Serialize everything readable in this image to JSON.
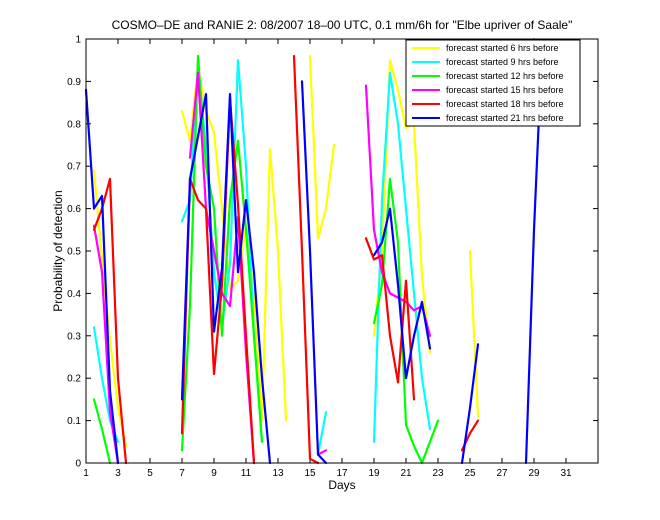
{
  "chart_data": {
    "type": "line",
    "title": "COSMO–DE and RANIE 2: 08/2007 18–00 UTC, 0.1 mm/6h for \"Elbe upriver of Saale\"",
    "xlabel": "Days",
    "ylabel": "Probability of detection",
    "xlim": [
      1,
      33
    ],
    "ylim": [
      0,
      1
    ],
    "xticks": [
      1,
      3,
      5,
      7,
      9,
      11,
      13,
      15,
      17,
      19,
      21,
      23,
      25,
      27,
      29,
      31
    ],
    "yticks": [
      0,
      0.1,
      0.2,
      0.3,
      0.4,
      0.5,
      0.6,
      0.7,
      0.8,
      0.9,
      1
    ],
    "legend_position": "top-right",
    "series": [
      {
        "name": "forecast started 6 hrs before",
        "color": "#ffff00",
        "segments": [
          [
            [
              1.5,
              0.69
            ],
            [
              2.0,
              0.48
            ],
            [
              2.5,
              0.29
            ],
            [
              3.0,
              0.13
            ],
            [
              3.5,
              0.04
            ]
          ],
          [
            [
              7.0,
              0.83
            ],
            [
              7.5,
              0.76
            ],
            [
              8.0,
              0.93
            ],
            [
              8.5,
              0.83
            ],
            [
              9.0,
              0.78
            ],
            [
              9.5,
              0.6
            ],
            [
              10.0,
              0.41
            ],
            [
              10.5,
              0.43
            ],
            [
              11.0,
              0.56
            ],
            [
              11.5,
              0.39
            ],
            [
              12.0,
              0.1
            ],
            [
              12.5,
              0.74
            ],
            [
              13.0,
              0.5
            ],
            [
              13.5,
              0.1
            ]
          ],
          [
            [
              15.0,
              0.96
            ],
            [
              15.5,
              0.53
            ],
            [
              16.0,
              0.6
            ],
            [
              16.5,
              0.75
            ]
          ],
          [
            [
              19.0,
              0.3
            ],
            [
              19.5,
              0.5
            ],
            [
              20.0,
              0.95
            ],
            [
              20.5,
              0.88
            ],
            [
              21.0,
              0.79
            ],
            [
              21.5,
              0.8
            ],
            [
              22.0,
              0.44
            ],
            [
              22.5,
              0.26
            ]
          ],
          [
            [
              25.0,
              0.5
            ],
            [
              25.5,
              0.11
            ]
          ],
          [
            [
              29.0,
              0.93
            ],
            [
              29.5,
              0.99
            ],
            [
              30.0,
              0.98
            ]
          ]
        ]
      },
      {
        "name": "forecast started 9 hrs before",
        "color": "#00ffff",
        "segments": [
          [
            [
              1.5,
              0.32
            ],
            [
              2.0,
              0.2
            ],
            [
              2.5,
              0.1
            ],
            [
              3.0,
              0.05
            ]
          ],
          [
            [
              7.0,
              0.57
            ],
            [
              7.5,
              0.62
            ],
            [
              8.0,
              0.94
            ],
            [
              8.5,
              0.74
            ],
            [
              9.0,
              0.45
            ],
            [
              9.5,
              0.32
            ],
            [
              10.0,
              0.47
            ],
            [
              10.5,
              0.95
            ],
            [
              11.0,
              0.7
            ],
            [
              11.5,
              0.3
            ],
            [
              12.0,
              0.05
            ]
          ],
          [
            [
              15.5,
              0.02
            ],
            [
              16.0,
              0.12
            ]
          ],
          [
            [
              19.0,
              0.05
            ],
            [
              19.5,
              0.62
            ],
            [
              20.0,
              0.92
            ],
            [
              20.5,
              0.8
            ],
            [
              21.0,
              0.6
            ],
            [
              21.5,
              0.4
            ],
            [
              22.0,
              0.2
            ],
            [
              22.5,
              0.08
            ]
          ],
          [
            [
              29.0,
              0.99
            ],
            [
              29.5,
              0.98
            ],
            [
              30.0,
              0.96
            ]
          ]
        ]
      },
      {
        "name": "forecast started 12 hrs before",
        "color": "#00ff00",
        "segments": [
          [
            [
              1.5,
              0.15
            ],
            [
              2.0,
              0.08
            ],
            [
              2.5,
              0.0
            ]
          ],
          [
            [
              7.0,
              0.03
            ],
            [
              7.5,
              0.37
            ],
            [
              8.0,
              0.96
            ],
            [
              8.5,
              0.7
            ],
            [
              9.0,
              0.6
            ],
            [
              9.5,
              0.3
            ],
            [
              10.0,
              0.62
            ],
            [
              10.5,
              0.76
            ],
            [
              11.0,
              0.55
            ],
            [
              11.5,
              0.3
            ],
            [
              12.0,
              0.05
            ]
          ],
          [
            [
              19.0,
              0.33
            ],
            [
              19.5,
              0.42
            ],
            [
              20.0,
              0.67
            ],
            [
              20.5,
              0.52
            ],
            [
              21.0,
              0.09
            ],
            [
              21.5,
              0.04
            ],
            [
              22.0,
              0.0
            ],
            [
              22.5,
              0.05
            ],
            [
              23.0,
              0.1
            ]
          ],
          [
            [
              29.0,
              1.0
            ],
            [
              29.5,
              0.98
            ],
            [
              30.0,
              0.97
            ]
          ]
        ]
      },
      {
        "name": "forecast started 15 hrs before",
        "color": "#ff00ff",
        "segments": [
          [
            [
              1.5,
              0.56
            ],
            [
              2.0,
              0.45
            ],
            [
              2.5,
              0.12
            ],
            [
              3.0,
              0.0
            ]
          ],
          [
            [
              7.5,
              0.72
            ],
            [
              8.0,
              0.92
            ],
            [
              8.5,
              0.6
            ],
            [
              9.0,
              0.5
            ],
            [
              9.5,
              0.4
            ],
            [
              10.0,
              0.37
            ],
            [
              10.5,
              0.58
            ],
            [
              11.0,
              0.26
            ],
            [
              11.5,
              0.0
            ]
          ],
          [
            [
              15.5,
              0.02
            ],
            [
              16.0,
              0.03
            ]
          ],
          [
            [
              18.5,
              0.89
            ],
            [
              19.0,
              0.55
            ],
            [
              19.5,
              0.45
            ],
            [
              20.0,
              0.4
            ],
            [
              20.5,
              0.39
            ],
            [
              21.0,
              0.38
            ],
            [
              21.5,
              0.36
            ],
            [
              22.0,
              0.37
            ],
            [
              22.5,
              0.3
            ]
          ],
          [
            [
              29.5,
              0.99
            ],
            [
              30.0,
              0.99
            ]
          ]
        ]
      },
      {
        "name": "forecast started 18 hrs before",
        "color": "#ff0000",
        "segments": [
          [
            [
              1.5,
              0.55
            ],
            [
              2.0,
              0.6
            ],
            [
              2.5,
              0.67
            ],
            [
              3.0,
              0.2
            ],
            [
              3.5,
              0.0
            ]
          ],
          [
            [
              7.0,
              0.07
            ],
            [
              7.5,
              0.67
            ],
            [
              8.0,
              0.62
            ],
            [
              8.5,
              0.6
            ],
            [
              9.0,
              0.21
            ],
            [
              9.5,
              0.42
            ],
            [
              10.0,
              0.86
            ],
            [
              10.5,
              0.61
            ],
            [
              11.0,
              0.3
            ],
            [
              11.5,
              0.0
            ]
          ],
          [
            [
              14.0,
              0.96
            ],
            [
              14.5,
              0.5
            ],
            [
              15.0,
              0.01
            ],
            [
              15.5,
              0.0
            ]
          ],
          [
            [
              18.5,
              0.53
            ],
            [
              19.0,
              0.48
            ],
            [
              19.5,
              0.49
            ],
            [
              20.0,
              0.3
            ],
            [
              20.5,
              0.19
            ],
            [
              21.0,
              0.43
            ],
            [
              21.5,
              0.15
            ]
          ],
          [
            [
              24.5,
              0.03
            ],
            [
              25.0,
              0.07
            ],
            [
              25.5,
              0.1
            ]
          ],
          [
            [
              30.0,
              0.99
            ]
          ]
        ]
      },
      {
        "name": "forecast started 21 hrs before",
        "color": "#0000ff",
        "segments": [
          [
            [
              1.0,
              0.88
            ],
            [
              1.5,
              0.6
            ],
            [
              2.0,
              0.63
            ],
            [
              2.5,
              0.17
            ],
            [
              3.0,
              0.0
            ]
          ],
          [
            [
              7.0,
              0.15
            ],
            [
              7.5,
              0.67
            ],
            [
              8.0,
              0.77
            ],
            [
              8.5,
              0.87
            ],
            [
              9.0,
              0.31
            ],
            [
              9.5,
              0.46
            ],
            [
              10.0,
              0.87
            ],
            [
              10.5,
              0.45
            ],
            [
              11.0,
              0.62
            ],
            [
              11.5,
              0.45
            ],
            [
              12.0,
              0.2
            ],
            [
              12.5,
              0.0
            ]
          ],
          [
            [
              14.5,
              0.9
            ],
            [
              15.0,
              0.5
            ],
            [
              15.5,
              0.02
            ],
            [
              16.0,
              0.0
            ]
          ],
          [
            [
              19.0,
              0.49
            ],
            [
              19.5,
              0.52
            ],
            [
              20.0,
              0.6
            ],
            [
              20.5,
              0.42
            ],
            [
              21.0,
              0.2
            ],
            [
              21.5,
              0.3
            ],
            [
              22.0,
              0.38
            ],
            [
              22.5,
              0.27
            ]
          ],
          [
            [
              24.5,
              0.0
            ],
            [
              25.0,
              0.13
            ],
            [
              25.5,
              0.28
            ]
          ],
          [
            [
              28.5,
              0.0
            ],
            [
              29.0,
              0.55
            ],
            [
              29.5,
              0.98
            ],
            [
              30.0,
              0.94
            ],
            [
              30.5,
              0.89
            ]
          ]
        ]
      }
    ]
  }
}
